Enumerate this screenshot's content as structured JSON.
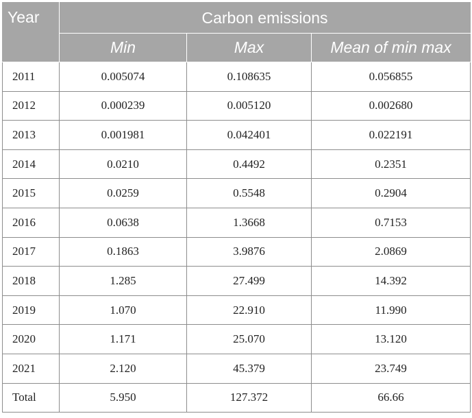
{
  "header": {
    "year_label": "Year",
    "group_label": "Carbon emissions",
    "columns": [
      "Min",
      "Max",
      "Mean of min max"
    ]
  },
  "rows": [
    {
      "year": "2011",
      "min": "0.005074",
      "max": "0.108635",
      "mean": "0.056855"
    },
    {
      "year": "2012",
      "min": "0.000239",
      "max": "0.005120",
      "mean": "0.002680"
    },
    {
      "year": "2013",
      "min": "0.001981",
      "max": "0.042401",
      "mean": "0.022191"
    },
    {
      "year": "2014",
      "min": "0.0210",
      "max": "0.4492",
      "mean": "0.2351"
    },
    {
      "year": "2015",
      "min": "0.0259",
      "max": "0.5548",
      "mean": "0.2904"
    },
    {
      "year": "2016",
      "min": "0.0638",
      "max": "1.3668",
      "mean": "0.7153"
    },
    {
      "year": "2017",
      "min": "0.1863",
      "max": "3.9876",
      "mean": "2.0869"
    },
    {
      "year": "2018",
      "min": "1.285",
      "max": "27.499",
      "mean": "14.392"
    },
    {
      "year": "2019",
      "min": "1.070",
      "max": "22.910",
      "mean": "11.990"
    },
    {
      "year": "2020",
      "min": "1.171",
      "max": "25.070",
      "mean": "13.120"
    },
    {
      "year": "2021",
      "min": "2.120",
      "max": "45.379",
      "mean": "23.749"
    },
    {
      "year": "Total",
      "min": "5.950",
      "max": "127.372",
      "mean": "66.66"
    }
  ],
  "colors": {
    "header_bg": "#a6a6a6",
    "header_text": "#ffffff",
    "grid_line": "#8c8c8c"
  }
}
